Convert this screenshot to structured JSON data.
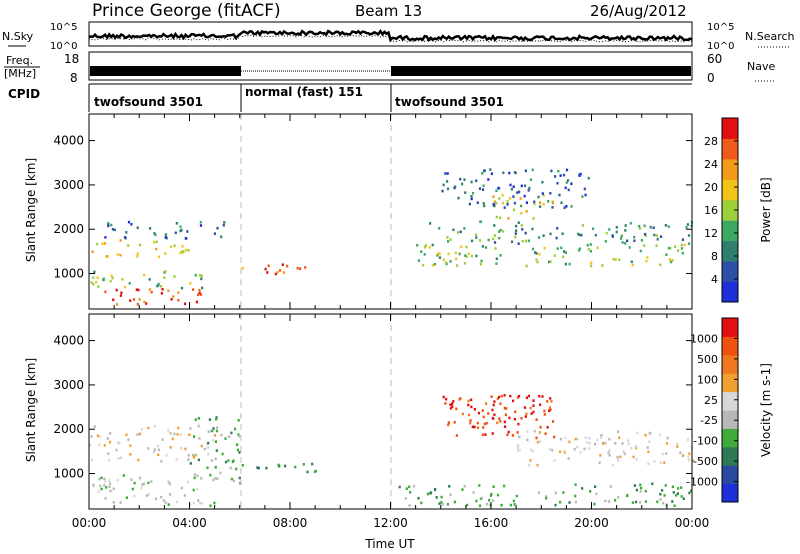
{
  "header": {
    "station": "Prince George (fitACF)",
    "beam": "Beam 13",
    "date": "26/Aug/2012"
  },
  "sky_panel": {
    "left_label": "N.Sky",
    "right_label": "N.Search",
    "ticks": [
      "10^5",
      "10^0"
    ],
    "right_ticks": [
      "10^5",
      "10^0"
    ]
  },
  "freq_panel": {
    "left_label_1": "Freq.",
    "left_label_2": "[MHz]",
    "right_label": "Nave",
    "ticks": [
      "18",
      "8"
    ],
    "right_ticks": [
      "60",
      "0"
    ]
  },
  "cpid": {
    "label": "CPID",
    "segments": [
      {
        "name": "twofsound 3501",
        "start": 0,
        "end": 6
      },
      {
        "name": "normal (fast) 151",
        "start": 6,
        "end": 12
      },
      {
        "name": "twofsound 3501",
        "start": 12,
        "end": 24
      }
    ]
  },
  "colors": {
    "power_scale": [
      "#1c2fd8",
      "#2c4fa8",
      "#2e7f6e",
      "#3da862",
      "#9ccf3a",
      "#f0c419",
      "#f29a1a",
      "#f05a1a",
      "#e01010"
    ],
    "velocity_scale": [
      "#1c2fd8",
      "#2a4aa0",
      "#2e7a54",
      "#3eaa3a",
      "#b8b8b8",
      "#d8d8d8",
      "#f0a030",
      "#f07820",
      "#f05010",
      "#e01010"
    ]
  },
  "chart_data": [
    {
      "type": "heatmap",
      "title": "",
      "ylabel": "Slant Range [km]",
      "xlabel": "",
      "xlim": [
        0,
        24
      ],
      "ylim": [
        200,
        4600
      ],
      "yticks": [
        "4000",
        "3000",
        "2000",
        "1000"
      ],
      "ytick_values": [
        4000,
        3000,
        2000,
        1000
      ],
      "colorbar": {
        "label": "Power [dB]",
        "ticks": [
          "28",
          "24",
          "20",
          "16",
          "12",
          "8",
          "4"
        ],
        "range": [
          0,
          30
        ]
      },
      "scatter_regions": [
        {
          "t0": 0.0,
          "t1": 4.5,
          "r0": 300,
          "r1": 700,
          "level": 26
        },
        {
          "t0": 0.0,
          "t1": 5.0,
          "r0": 700,
          "r1": 1100,
          "level": 14
        },
        {
          "t0": 0.0,
          "t1": 4.0,
          "r0": 1400,
          "r1": 1800,
          "level": 18
        },
        {
          "t0": 0.5,
          "t1": 5.5,
          "r0": 1800,
          "r1": 2200,
          "level": 6
        },
        {
          "t0": 6.0,
          "t1": 9.0,
          "r0": 1000,
          "r1": 1250,
          "level": 24
        },
        {
          "t0": 13.0,
          "t1": 24.0,
          "r0": 1200,
          "r1": 1700,
          "level": 14
        },
        {
          "t0": 13.5,
          "t1": 24.0,
          "r0": 1700,
          "r1": 2200,
          "level": 10
        },
        {
          "t0": 16.0,
          "t1": 18.5,
          "r0": 2200,
          "r1": 2800,
          "level": 18
        },
        {
          "t0": 14.0,
          "t1": 20.0,
          "r0": 2500,
          "r1": 3400,
          "level": 6
        }
      ]
    },
    {
      "type": "heatmap",
      "title": "",
      "ylabel": "Slant Range [km]",
      "xlabel": "Time UT",
      "xlim": [
        0,
        24
      ],
      "ylim": [
        200,
        4600
      ],
      "yticks": [
        "4000",
        "3000",
        "2000",
        "1000"
      ],
      "ytick_values": [
        4000,
        3000,
        2000,
        1000
      ],
      "xticks": [
        "00:00",
        "04:00",
        "08:00",
        "12:00",
        "16:00",
        "20:00",
        "00:00"
      ],
      "colorbar": {
        "label": "Velocity [m s-1]",
        "ticks": [
          "1000",
          "500",
          "100",
          "25",
          "-25",
          "-100",
          "-500",
          "-1000"
        ]
      },
      "scatter_regions": [
        {
          "t0": 0.0,
          "t1": 5.0,
          "r0": 300,
          "r1": 1000,
          "level": 4
        },
        {
          "t0": 0.0,
          "t1": 5.0,
          "r0": 1300,
          "r1": 2100,
          "level": 5
        },
        {
          "t0": 4.0,
          "t1": 6.0,
          "r0": 800,
          "r1": 2300,
          "level": 3
        },
        {
          "t0": 6.0,
          "t1": 9.0,
          "r0": 1000,
          "r1": 1250,
          "level": 2
        },
        {
          "t0": 14.0,
          "t1": 18.5,
          "r0": 1800,
          "r1": 2800,
          "level": 8
        },
        {
          "t0": 16.0,
          "t1": 18.5,
          "r0": 2200,
          "r1": 2800,
          "level": 9
        },
        {
          "t0": 17.0,
          "t1": 24.0,
          "r0": 1200,
          "r1": 2000,
          "level": 5
        },
        {
          "t0": 12.0,
          "t1": 24.0,
          "r0": 300,
          "r1": 800,
          "level": 3
        }
      ]
    }
  ]
}
